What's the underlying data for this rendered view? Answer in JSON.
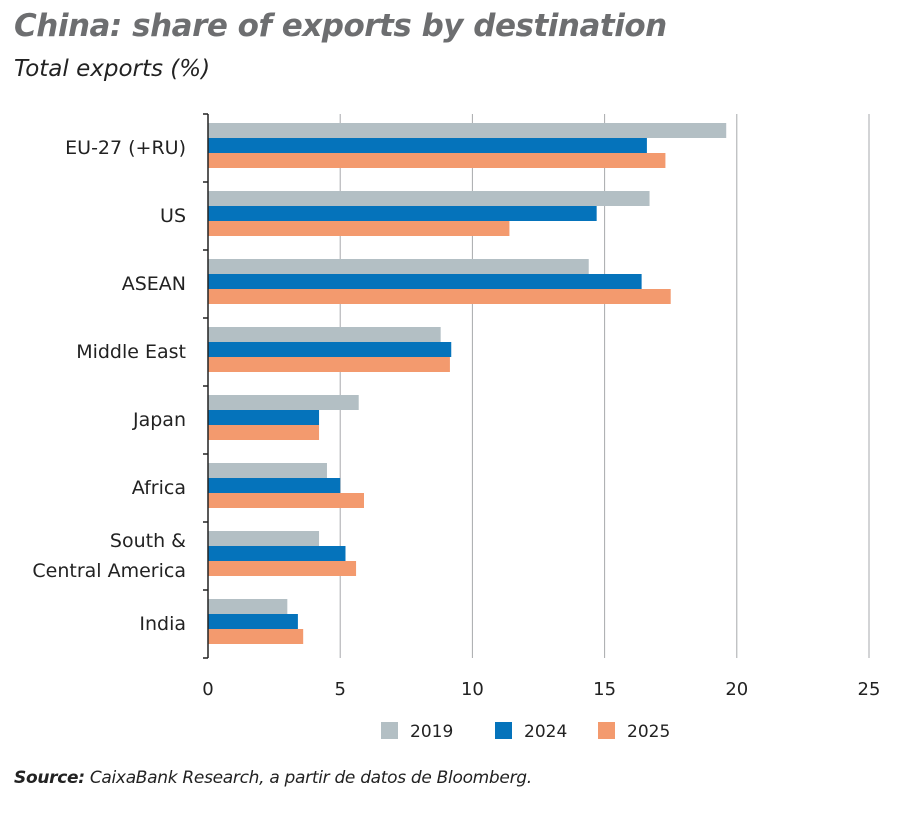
{
  "chart_data": {
    "type": "bar",
    "orientation": "horizontal",
    "title": "China: share of exports by destination",
    "subtitle": "Total exports (%)",
    "categories": [
      "EU-27 (+RU)",
      "US",
      "ASEAN",
      "Middle East",
      "Japan",
      "Africa",
      "South & Central America",
      "India"
    ],
    "category_lines": [
      [
        "EU-27 (+RU)"
      ],
      [
        "US"
      ],
      [
        "ASEAN"
      ],
      [
        "Middle East"
      ],
      [
        "Japan"
      ],
      [
        "Africa"
      ],
      [
        "South &",
        "Central America"
      ],
      [
        "India"
      ]
    ],
    "series": [
      {
        "name": "2019",
        "color": "#b3bfc4",
        "values": [
          19.6,
          16.7,
          14.4,
          8.8,
          5.7,
          4.5,
          4.2,
          3.0
        ]
      },
      {
        "name": "2024",
        "color": "#0573bb",
        "values": [
          16.6,
          14.7,
          16.4,
          9.2,
          4.2,
          5.0,
          5.2,
          3.4
        ]
      },
      {
        "name": "2025",
        "color": "#f39a6e",
        "values": [
          17.3,
          11.4,
          17.5,
          9.15,
          4.2,
          5.9,
          5.6,
          3.6
        ]
      }
    ],
    "xlim": [
      0,
      25
    ],
    "xticks": [
      0,
      5,
      10,
      15,
      20,
      25
    ],
    "grid": "vertical",
    "legend": "bottom",
    "xlabel": "",
    "ylabel": ""
  },
  "source": {
    "label": "Source:",
    "text": " CaixaBank Research, a partir de datos de Bloomberg."
  }
}
